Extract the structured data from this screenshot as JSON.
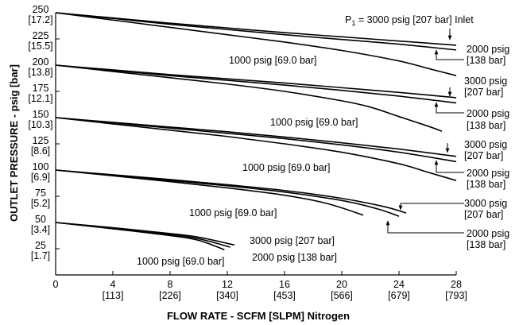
{
  "chart_data": {
    "type": "line",
    "xlabel": "FLOW RATE - SCFM [SLPM] Nitrogen",
    "ylabel": "OUTLET PRESSURE - psig [bar]",
    "xlim": [
      0,
      28
    ],
    "ylim": [
      0,
      250
    ],
    "grid": false,
    "x_ticks": [
      {
        "value": 0,
        "label": "0",
        "sub": ""
      },
      {
        "value": 4,
        "label": "4",
        "sub": "[113]"
      },
      {
        "value": 8,
        "label": "8",
        "sub": "[226]"
      },
      {
        "value": 12,
        "label": "12",
        "sub": "[340]"
      },
      {
        "value": 16,
        "label": "16",
        "sub": "[453]"
      },
      {
        "value": 20,
        "label": "20",
        "sub": "[566]"
      },
      {
        "value": 24,
        "label": "24",
        "sub": "[679]"
      },
      {
        "value": 28,
        "label": "28",
        "sub": "[793]"
      }
    ],
    "y_ticks": [
      {
        "value": 250,
        "label": "250",
        "sub": "[17.2]"
      },
      {
        "value": 225,
        "label": "225",
        "sub": "[15.5]"
      },
      {
        "value": 200,
        "label": "200",
        "sub": "[13.8]"
      },
      {
        "value": 175,
        "label": "175",
        "sub": "[12.1]"
      },
      {
        "value": 150,
        "label": "150",
        "sub": "[10.3]"
      },
      {
        "value": 125,
        "label": "125",
        "sub": "[8.6]"
      },
      {
        "value": 100,
        "label": "100",
        "sub": "[6.9]"
      },
      {
        "value": 75,
        "label": "75",
        "sub": "[5.2]"
      },
      {
        "value": 50,
        "label": "50",
        "sub": "[3.4]"
      },
      {
        "value": 25,
        "label": "25",
        "sub": "[1.7]"
      }
    ],
    "series": [
      {
        "group": 250,
        "inlet": "3000 psig",
        "points": [
          [
            0,
            250
          ],
          [
            4,
            245
          ],
          [
            8,
            240
          ],
          [
            12,
            235.5
          ],
          [
            16,
            231
          ],
          [
            20,
            227
          ],
          [
            24,
            223
          ],
          [
            28,
            219
          ]
        ]
      },
      {
        "group": 250,
        "inlet": "2000 psig",
        "points": [
          [
            0,
            250
          ],
          [
            4,
            244.5
          ],
          [
            8,
            239
          ],
          [
            12,
            234
          ],
          [
            16,
            229
          ],
          [
            20,
            224.5
          ],
          [
            24,
            220
          ],
          [
            28,
            214.5
          ]
        ]
      },
      {
        "group": 250,
        "inlet": "1000 psig",
        "points": [
          [
            0,
            250
          ],
          [
            4,
            243
          ],
          [
            8,
            236
          ],
          [
            12,
            229
          ],
          [
            16,
            222
          ],
          [
            20,
            214
          ],
          [
            24,
            204
          ],
          [
            26,
            197
          ],
          [
            28,
            190
          ]
        ]
      },
      {
        "group": 200,
        "inlet": "3000 psig",
        "points": [
          [
            0,
            200
          ],
          [
            4,
            195.5
          ],
          [
            8,
            191
          ],
          [
            12,
            187
          ],
          [
            16,
            183
          ],
          [
            20,
            178.5
          ],
          [
            24,
            174
          ],
          [
            28,
            169
          ]
        ]
      },
      {
        "group": 200,
        "inlet": "2000 psig",
        "points": [
          [
            0,
            200
          ],
          [
            4,
            195
          ],
          [
            8,
            190
          ],
          [
            12,
            185.5
          ],
          [
            16,
            181
          ],
          [
            20,
            176
          ],
          [
            24,
            170.5
          ],
          [
            28,
            164
          ]
        ]
      },
      {
        "group": 200,
        "inlet": "1000 psig",
        "points": [
          [
            0,
            200
          ],
          [
            4,
            194
          ],
          [
            8,
            188
          ],
          [
            12,
            182
          ],
          [
            16,
            175
          ],
          [
            20,
            166
          ],
          [
            22,
            160
          ],
          [
            24,
            151
          ],
          [
            26,
            142
          ],
          [
            27,
            137
          ]
        ]
      },
      {
        "group": 150,
        "inlet": "3000 psig",
        "points": [
          [
            0,
            150
          ],
          [
            4,
            145.5
          ],
          [
            8,
            141
          ],
          [
            12,
            136.5
          ],
          [
            16,
            131.5
          ],
          [
            20,
            126
          ],
          [
            24,
            120
          ],
          [
            28,
            113
          ]
        ]
      },
      {
        "group": 150,
        "inlet": "2000 psig",
        "points": [
          [
            0,
            150
          ],
          [
            4,
            145
          ],
          [
            8,
            140
          ],
          [
            12,
            135
          ],
          [
            16,
            130
          ],
          [
            20,
            124
          ],
          [
            24,
            117
          ],
          [
            28,
            108
          ]
        ]
      },
      {
        "group": 150,
        "inlet": "1000 psig",
        "points": [
          [
            0,
            150
          ],
          [
            4,
            144
          ],
          [
            8,
            138
          ],
          [
            12,
            132
          ],
          [
            16,
            125
          ],
          [
            20,
            117
          ],
          [
            24,
            106
          ],
          [
            26,
            98
          ],
          [
            28,
            90
          ]
        ]
      },
      {
        "group": 100,
        "inlet": "3000 psig",
        "points": [
          [
            0,
            100
          ],
          [
            4,
            95.5
          ],
          [
            8,
            91
          ],
          [
            12,
            86
          ],
          [
            16,
            80.5
          ],
          [
            20,
            73
          ],
          [
            23,
            65
          ],
          [
            24.5,
            59
          ]
        ]
      },
      {
        "group": 100,
        "inlet": "2000 psig",
        "points": [
          [
            0,
            100
          ],
          [
            4,
            95
          ],
          [
            8,
            90
          ],
          [
            12,
            85
          ],
          [
            16,
            79
          ],
          [
            20,
            71
          ],
          [
            22.5,
            63
          ],
          [
            24,
            56
          ]
        ]
      },
      {
        "group": 100,
        "inlet": "1000 psig",
        "points": [
          [
            0,
            100
          ],
          [
            4,
            94.5
          ],
          [
            8,
            89
          ],
          [
            12,
            83
          ],
          [
            16,
            76
          ],
          [
            19,
            68
          ],
          [
            21.5,
            57
          ]
        ]
      },
      {
        "group": 50,
        "inlet": "3000 psig",
        "points": [
          [
            0,
            50
          ],
          [
            4,
            45
          ],
          [
            8,
            39.5
          ],
          [
            10,
            36
          ],
          [
            12.5,
            28.5
          ]
        ]
      },
      {
        "group": 50,
        "inlet": "2000 psig",
        "points": [
          [
            0,
            50
          ],
          [
            4,
            44.5
          ],
          [
            8,
            38.5
          ],
          [
            10,
            34.5
          ],
          [
            12.2,
            26.5
          ]
        ]
      },
      {
        "group": 50,
        "inlet": "1000 psig",
        "points": [
          [
            0,
            50
          ],
          [
            4,
            44
          ],
          [
            8,
            37.5
          ],
          [
            10,
            33
          ],
          [
            11.8,
            24
          ]
        ]
      }
    ],
    "annotations": [
      {
        "text": "P",
        "sub": "1",
        "rest": " = 3000 psig [207 bar] Inlet"
      },
      {
        "line1": "2000 psig",
        "line2": "[138 bar]"
      },
      {
        "text": "1000 psig [69.0 bar]"
      },
      {
        "line1": "3000 psig",
        "line2": "[207 bar]"
      },
      {
        "line1": "2000 psig",
        "line2": "[138 bar]"
      },
      {
        "text": "1000 psig [69.0 bar]"
      },
      {
        "line1": "3000 psig",
        "line2": "[207 bar]"
      },
      {
        "line1": "2000 psig",
        "line2": "[138 bar]"
      },
      {
        "text": "1000 psig [69.0 bar]"
      },
      {
        "line1": "3000 psig",
        "line2": "[207 bar]"
      },
      {
        "line1": "2000 psig",
        "line2": "[138 bar]"
      },
      {
        "text": "1000 psig [69.0 bar]"
      },
      {
        "text": "3000 psig [207 bar]"
      },
      {
        "text": "2000 psig [138 bar]"
      },
      {
        "text": "1000 psig [69.0 bar]"
      }
    ]
  }
}
